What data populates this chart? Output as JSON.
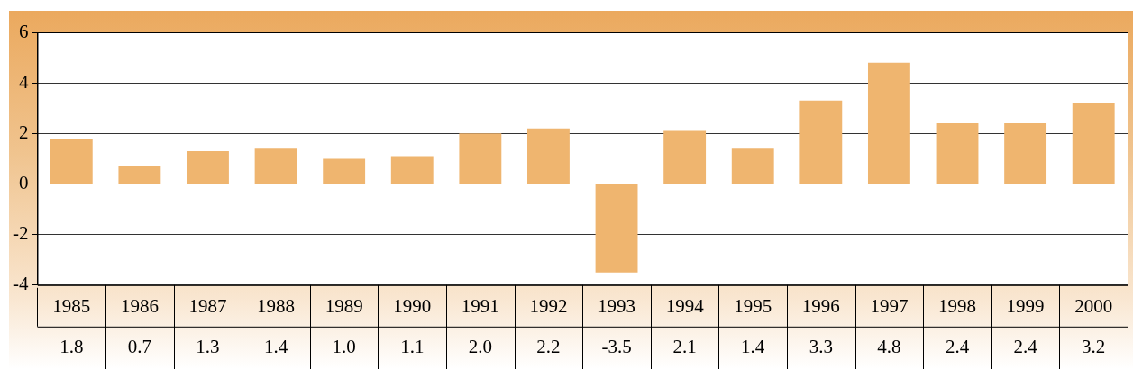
{
  "chart_data": {
    "type": "bar",
    "categories": [
      "1985",
      "1986",
      "1987",
      "1988",
      "1989",
      "1990",
      "1991",
      "1992",
      "1993",
      "1994",
      "1995",
      "1996",
      "1997",
      "1998",
      "1999",
      "2000"
    ],
    "values": [
      1.8,
      0.7,
      1.3,
      1.4,
      1.0,
      1.1,
      2.0,
      2.2,
      -3.5,
      2.1,
      1.4,
      3.3,
      4.8,
      2.4,
      2.4,
      3.2
    ],
    "value_labels": [
      "1.8",
      "0.7",
      "1.3",
      "1.4",
      "1.0",
      "1.1",
      "2.0",
      "2.2",
      "-3.5",
      "2.1",
      "1.4",
      "3.3",
      "4.8",
      "2.4",
      "2.4",
      "3.2"
    ],
    "color": "#efb56f",
    "ylim": [
      -4,
      6
    ],
    "yticks": [
      -4,
      -2,
      0,
      2,
      4,
      6
    ],
    "grid": "y",
    "legend": false
  }
}
